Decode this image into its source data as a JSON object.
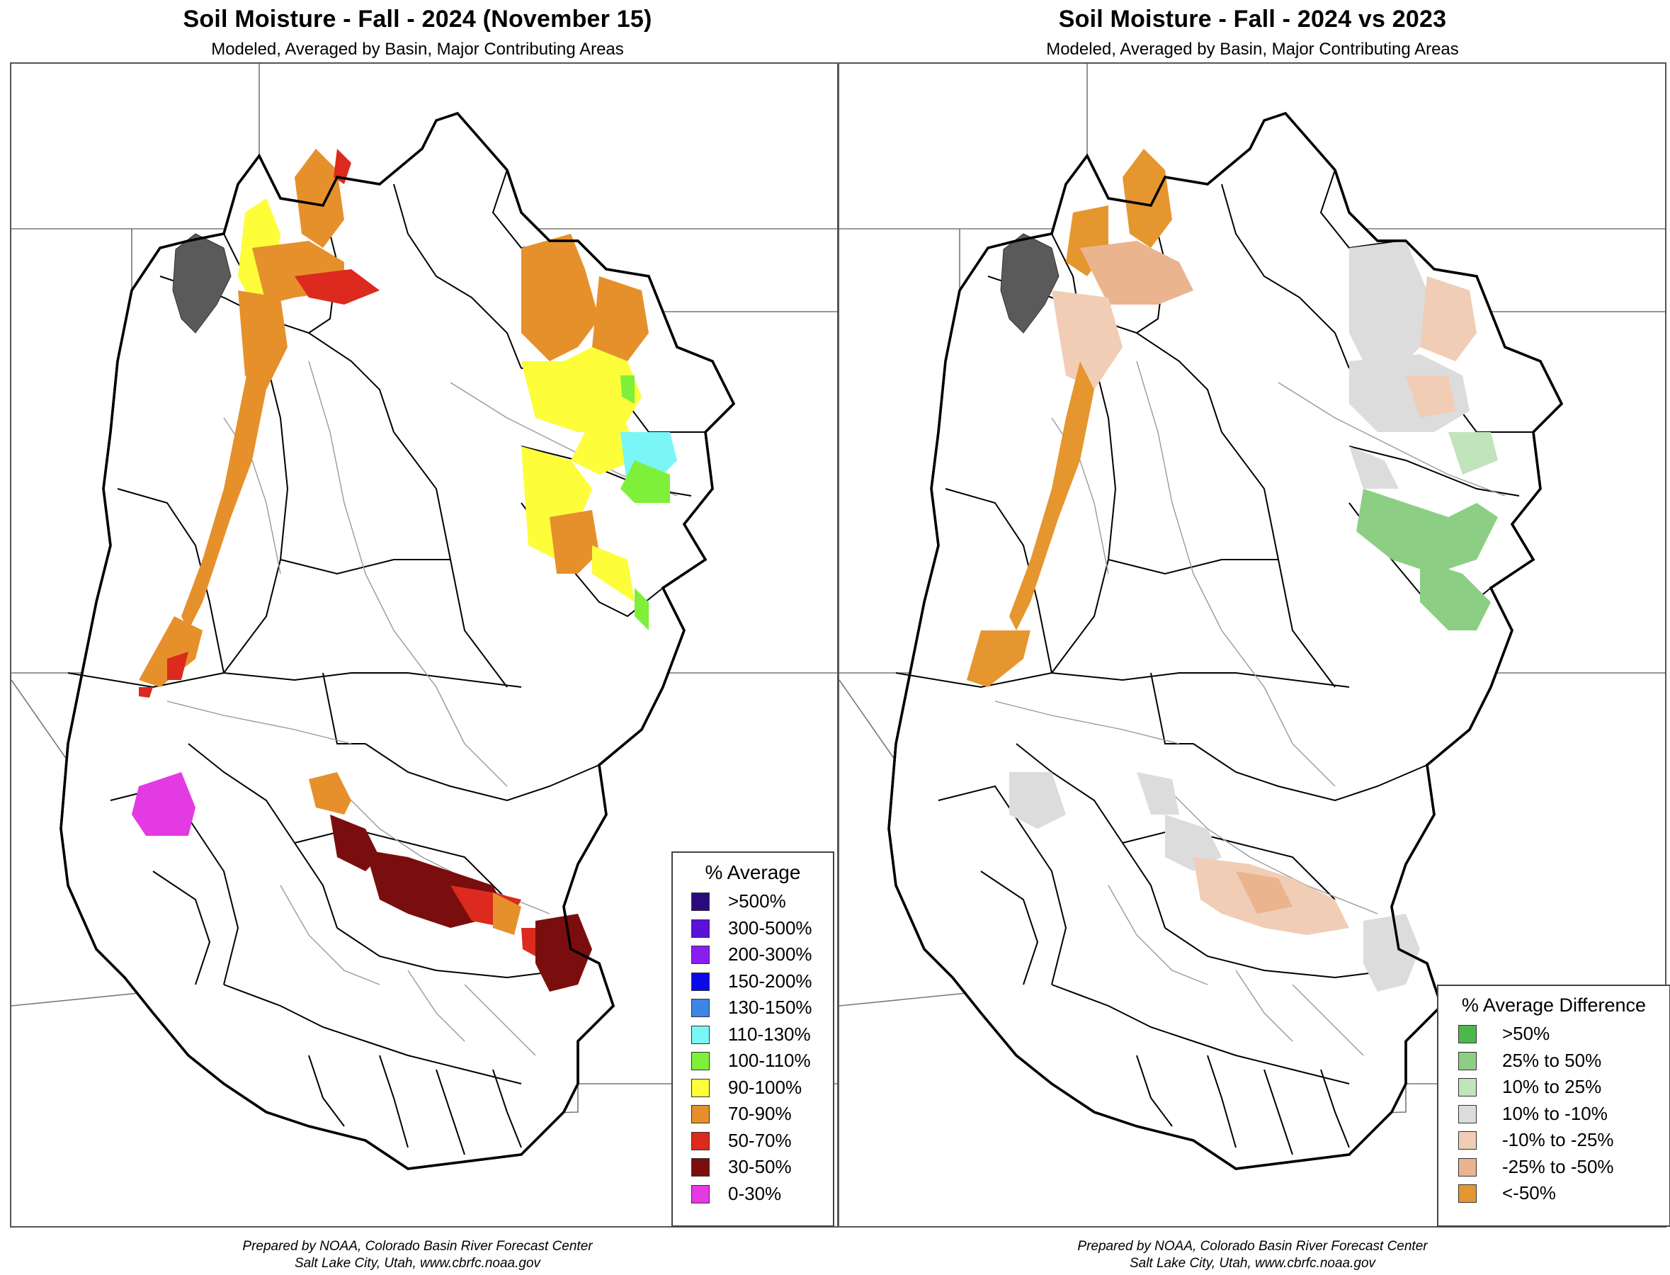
{
  "left": {
    "title": "Soil Moisture - Fall - 2024 (November 15)",
    "subtitle": "Modeled, Averaged by Basin, Major Contributing Areas",
    "credit_line1": "Prepared by NOAA, Colorado Basin River Forecast Center",
    "credit_line2": "Salt Lake City, Utah, www.cbrfc.noaa.gov",
    "legend": {
      "title": "% Average",
      "items": [
        {
          "label": ">500%",
          "color": "#2b0a80"
        },
        {
          "label": "300-500%",
          "color": "#5a12d8"
        },
        {
          "label": "200-300%",
          "color": "#8a1ef0"
        },
        {
          "label": "150-200%",
          "color": "#0a0ae8"
        },
        {
          "label": "130-150%",
          "color": "#3e86e6"
        },
        {
          "label": "110-130%",
          "color": "#7af6f6"
        },
        {
          "label": "100-110%",
          "color": "#7ef03a"
        },
        {
          "label": "90-100%",
          "color": "#fdfd3a"
        },
        {
          "label": "70-90%",
          "color": "#e6902c"
        },
        {
          "label": "50-70%",
          "color": "#dc2a1e"
        },
        {
          "label": "30-50%",
          "color": "#7a0e0e"
        },
        {
          "label": "0-30%",
          "color": "#e43ae4"
        }
      ]
    }
  },
  "right": {
    "title": "Soil Moisture - Fall - 2024 vs 2023",
    "subtitle": "Modeled, Averaged by Basin, Major Contributing Areas",
    "credit_line1": "Prepared by NOAA, Colorado Basin River Forecast Center",
    "credit_line2": "Salt Lake City, Utah, www.cbrfc.noaa.gov",
    "legend": {
      "title": "% Average Difference",
      "items": [
        {
          "label": ">50%",
          "color": "#4cb84c"
        },
        {
          "label": "25% to 50%",
          "color": "#8ccf84"
        },
        {
          "label": "10% to 25%",
          "color": "#c2e4bc"
        },
        {
          "label": "10% to -10%",
          "color": "#dcdcdc"
        },
        {
          "label": "-10% to -25%",
          "color": "#f0cdb4"
        },
        {
          "label": "-25% to -50%",
          "color": "#eab48e"
        },
        {
          "label": "<-50%",
          "color": "#e6962e"
        }
      ]
    }
  }
}
